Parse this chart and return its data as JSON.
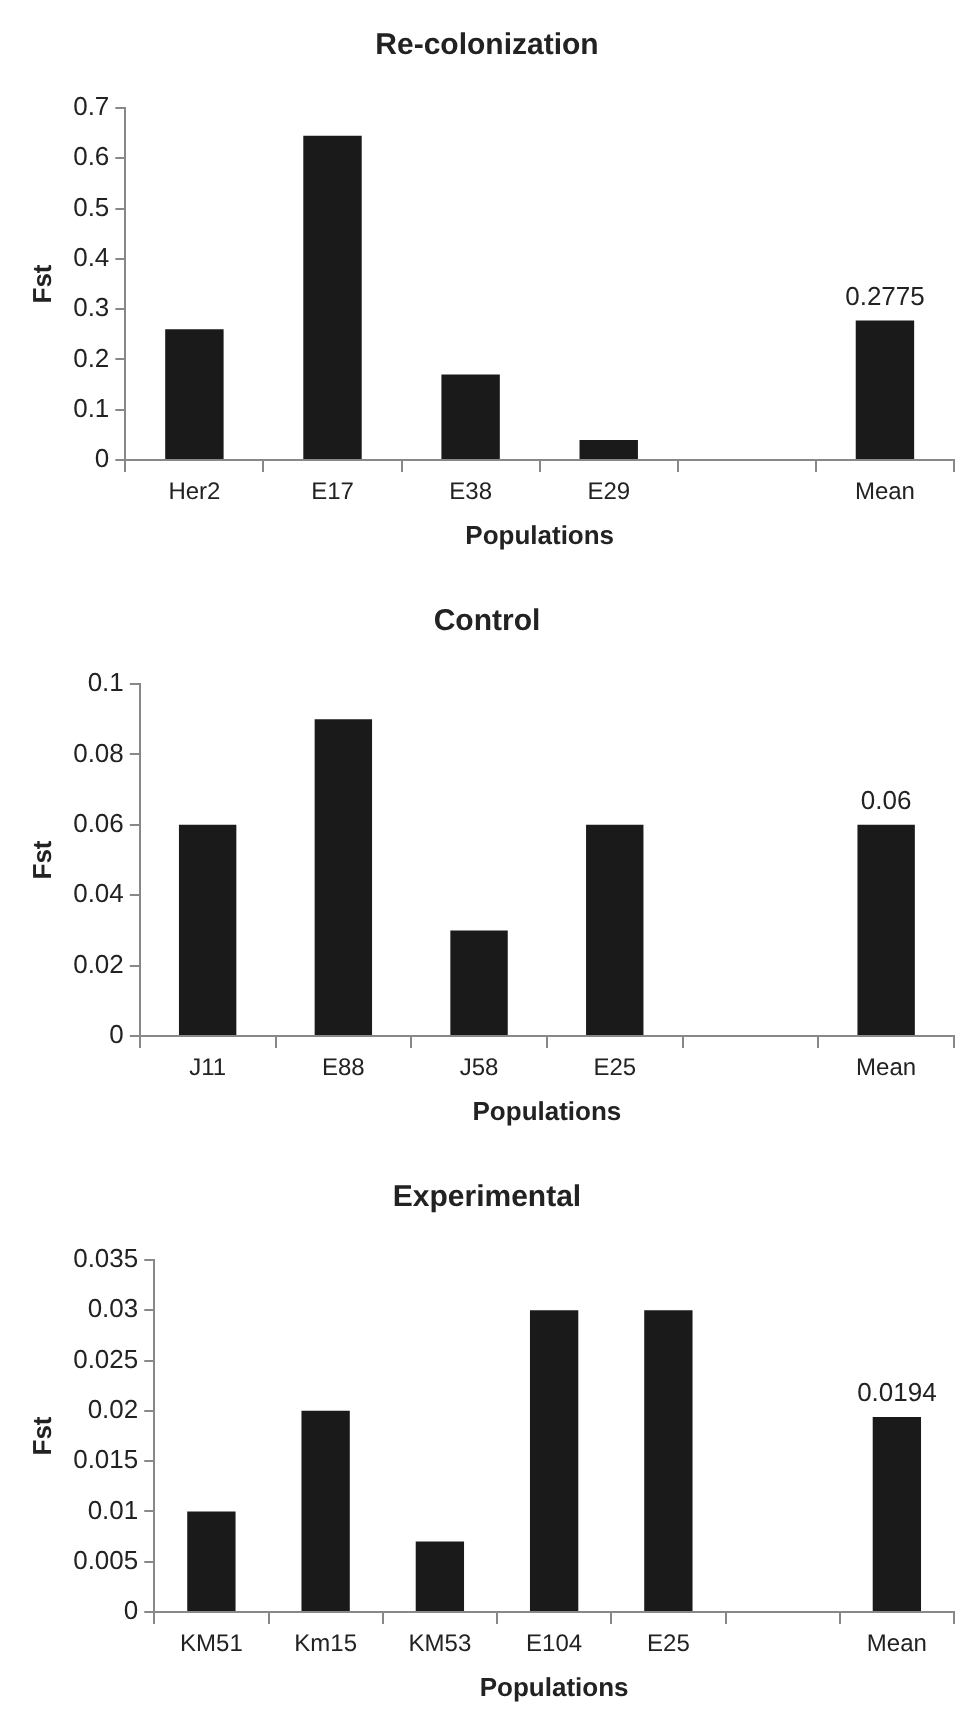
{
  "chart_data": [
    {
      "type": "bar",
      "title": "Re-colonization",
      "xlabel": "Populations",
      "ylabel": "Fst",
      "categories": [
        "Her2",
        "E17",
        "E38",
        "E29",
        null,
        "Mean"
      ],
      "values": [
        0.26,
        0.645,
        0.17,
        0.04,
        null,
        0.2775
      ],
      "value_labels": [
        null,
        null,
        null,
        null,
        null,
        "0.2775"
      ],
      "color": "#1a1a1a",
      "ylim": [
        0,
        0.7
      ],
      "yticks": [
        0,
        0.1,
        0.2,
        0.3,
        0.4,
        0.5,
        0.6,
        0.7
      ],
      "grid": false,
      "legend": false
    },
    {
      "type": "bar",
      "title": "Control",
      "xlabel": "Populations",
      "ylabel": "Fst",
      "categories": [
        "J11",
        "E88",
        "J58",
        "E25",
        null,
        "Mean"
      ],
      "values": [
        0.06,
        0.09,
        0.03,
        0.06,
        null,
        0.06
      ],
      "value_labels": [
        null,
        null,
        null,
        null,
        null,
        "0.06"
      ],
      "color": "#1a1a1a",
      "ylim": [
        0,
        0.1
      ],
      "yticks": [
        0,
        0.02,
        0.04,
        0.06,
        0.08,
        0.1
      ],
      "grid": false,
      "legend": false
    },
    {
      "type": "bar",
      "title": "Experimental",
      "xlabel": "Populations",
      "ylabel": "Fst",
      "categories": [
        "KM51",
        "Km15",
        "KM53",
        "E104",
        "E25",
        null,
        "Mean"
      ],
      "values": [
        0.01,
        0.02,
        0.007,
        0.03,
        0.03,
        null,
        0.0194
      ],
      "value_labels": [
        null,
        null,
        null,
        null,
        null,
        null,
        "0.0194"
      ],
      "color": "#1a1a1a",
      "ylim": [
        0,
        0.035
      ],
      "yticks": [
        0,
        0.005,
        0.01,
        0.015,
        0.02,
        0.025,
        0.03,
        0.035
      ],
      "grid": false,
      "legend": false
    }
  ]
}
